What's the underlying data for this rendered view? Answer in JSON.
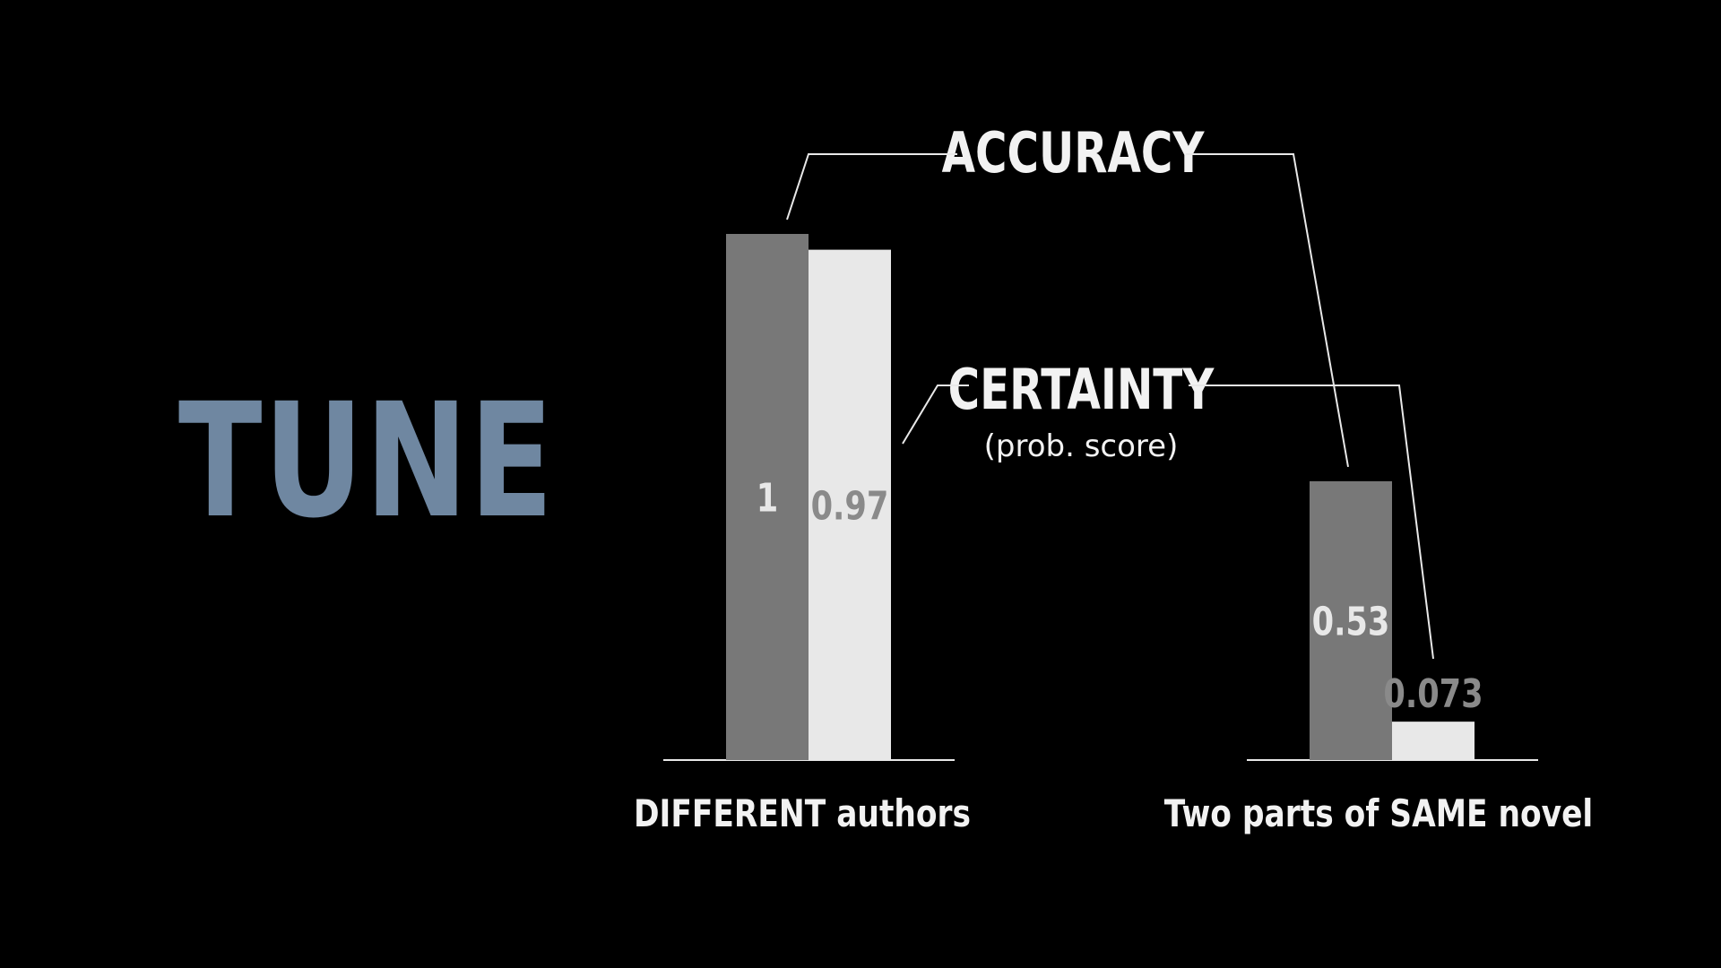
{
  "title": "TUNE",
  "colors": {
    "background": "#000000",
    "title": "#6f87a1",
    "accuracy_bar": "#787878",
    "certainty_bar": "#e8e8e8",
    "text": "#f2f2f2",
    "value_on_dark": "#e8e8e8",
    "value_on_light": "#8a8a8a",
    "leader_line": "#e8e8e8"
  },
  "chart_data": {
    "type": "bar",
    "categories": [
      "DIFFERENT authors",
      "Two parts of SAME novel"
    ],
    "series": [
      {
        "name": "ACCURACY",
        "values": [
          1,
          0.53
        ]
      },
      {
        "name": "CERTAINTY",
        "subtitle": "(prob. score)",
        "values": [
          0.97,
          0.073
        ]
      }
    ],
    "value_labels": [
      [
        "1",
        "0.53"
      ],
      [
        "0.97",
        "0.073"
      ]
    ],
    "ylim": [
      0,
      1
    ],
    "grid": false,
    "legend": "callout labels at top-center with leader lines"
  }
}
